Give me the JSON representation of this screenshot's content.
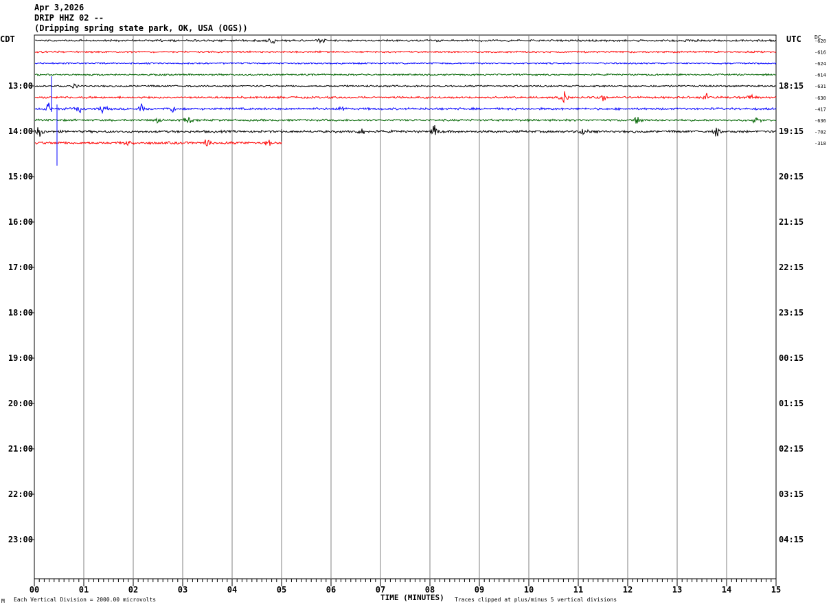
{
  "header": {
    "date": "Apr 3,2026",
    "station": "DRIP HHZ 02 --",
    "location": "(Dripping spring state park, OK, USA (OGS))"
  },
  "chart_data": {
    "type": "line",
    "left_axis_label": "CDT",
    "right_axis_label": "UTC",
    "dc_label": "DC",
    "left_hour_labels": [
      "13:00",
      "14:00",
      "15:00",
      "16:00",
      "17:00",
      "18:00",
      "19:00",
      "20:00",
      "21:00",
      "22:00",
      "23:00"
    ],
    "right_hour_labels": [
      "18:15",
      "19:15",
      "20:15",
      "21:15",
      "22:15",
      "23:15",
      "00:15",
      "01:15",
      "02:15",
      "03:15",
      "04:15"
    ],
    "x_tick_labels": [
      "00",
      "01",
      "02",
      "03",
      "04",
      "05",
      "06",
      "07",
      "08",
      "09",
      "10",
      "11",
      "12",
      "13",
      "14",
      "15"
    ],
    "xlabel": "TIME (MINUTES)",
    "xlim": [
      0,
      15
    ],
    "trace_colors": [
      "#000000",
      "#ff0000",
      "#0000ff",
      "#006400"
    ],
    "traces": [
      {
        "dc": "-620",
        "color": "#000000",
        "amp": 1.2,
        "end_min": 15,
        "bursts": [
          [
            4.8,
            2.5
          ],
          [
            5.8,
            2
          ]
        ]
      },
      {
        "dc": "-616",
        "color": "#ff0000",
        "amp": 1.0,
        "end_min": 15,
        "bursts": []
      },
      {
        "dc": "-624",
        "color": "#0000ff",
        "amp": 0.9,
        "end_min": 15,
        "bursts": []
      },
      {
        "dc": "-614",
        "color": "#006400",
        "amp": 1.0,
        "end_min": 15,
        "bursts": []
      },
      {
        "dc": "-631",
        "color": "#000000",
        "amp": 1.0,
        "end_min": 15,
        "bursts": [
          [
            0.8,
            2
          ]
        ]
      },
      {
        "dc": "-630",
        "color": "#ff0000",
        "amp": 1.2,
        "end_min": 15,
        "bursts": [
          [
            10.7,
            5
          ],
          [
            11.5,
            3
          ],
          [
            13.6,
            4
          ],
          [
            14.5,
            3
          ]
        ]
      },
      {
        "dc": "-417",
        "color": "#0000ff",
        "amp": 1.3,
        "end_min": 15,
        "bursts": [
          [
            0.3,
            5
          ],
          [
            0.9,
            5
          ],
          [
            1.4,
            3
          ],
          [
            2.2,
            5
          ],
          [
            2.8,
            3
          ],
          [
            6.2,
            3
          ]
        ]
      },
      {
        "dc": "-636",
        "color": "#006400",
        "amp": 1.2,
        "end_min": 15,
        "bursts": [
          [
            2.5,
            4
          ],
          [
            3.1,
            4
          ],
          [
            12.2,
            4
          ],
          [
            14.6,
            3
          ]
        ]
      },
      {
        "dc": "-702",
        "color": "#000000",
        "amp": 1.4,
        "end_min": 15,
        "bursts": [
          [
            0.1,
            4
          ],
          [
            6.6,
            4
          ],
          [
            8.1,
            5
          ],
          [
            11.1,
            4
          ],
          [
            13.8,
            5
          ]
        ]
      },
      {
        "dc": "-318",
        "color": "#ff0000",
        "amp": 1.5,
        "end_min": 5,
        "bursts": [
          [
            1.9,
            3
          ],
          [
            3.5,
            3
          ],
          [
            4.7,
            3
          ]
        ]
      }
    ]
  },
  "footer": {
    "vertical_division": "Each Vertical Division = 2000.00 microvolts",
    "clip_note": "Traces clipped at plus/minus 5 vertical divisions"
  }
}
